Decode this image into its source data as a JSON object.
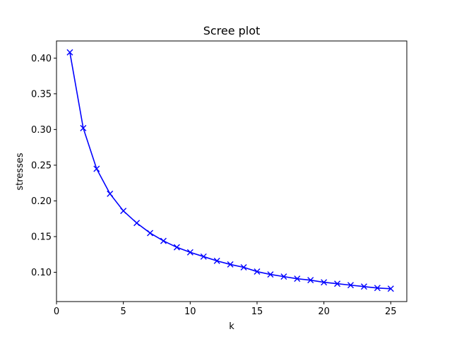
{
  "chart_data": {
    "type": "line",
    "title": "Scree plot",
    "xlabel": "k",
    "ylabel": "stresses",
    "xlim": [
      0,
      26.2
    ],
    "ylim": [
      0.059,
      0.424
    ],
    "xticks": [
      0,
      5,
      10,
      15,
      20,
      25
    ],
    "yticks": [
      0.1,
      0.15,
      0.2,
      0.25,
      0.3,
      0.35,
      0.4
    ],
    "xtick_labels": [
      "0",
      "5",
      "10",
      "15",
      "20",
      "25"
    ],
    "ytick_labels": [
      "0.10",
      "0.15",
      "0.20",
      "0.25",
      "0.30",
      "0.35",
      "0.40"
    ],
    "grid": false,
    "marker": "x",
    "color": "#0000ff",
    "series": [
      {
        "x": [
          1,
          2,
          3,
          4,
          5,
          6,
          7,
          8,
          9,
          10,
          11,
          12,
          13,
          14,
          15,
          16,
          17,
          18,
          19,
          20,
          21,
          22,
          23,
          24,
          25
        ],
        "values": [
          0.408,
          0.302,
          0.245,
          0.21,
          0.186,
          0.169,
          0.155,
          0.144,
          0.135,
          0.128,
          0.122,
          0.116,
          0.111,
          0.107,
          0.101,
          0.097,
          0.094,
          0.091,
          0.089,
          0.086,
          0.084,
          0.082,
          0.08,
          0.078,
          0.077
        ]
      }
    ]
  }
}
